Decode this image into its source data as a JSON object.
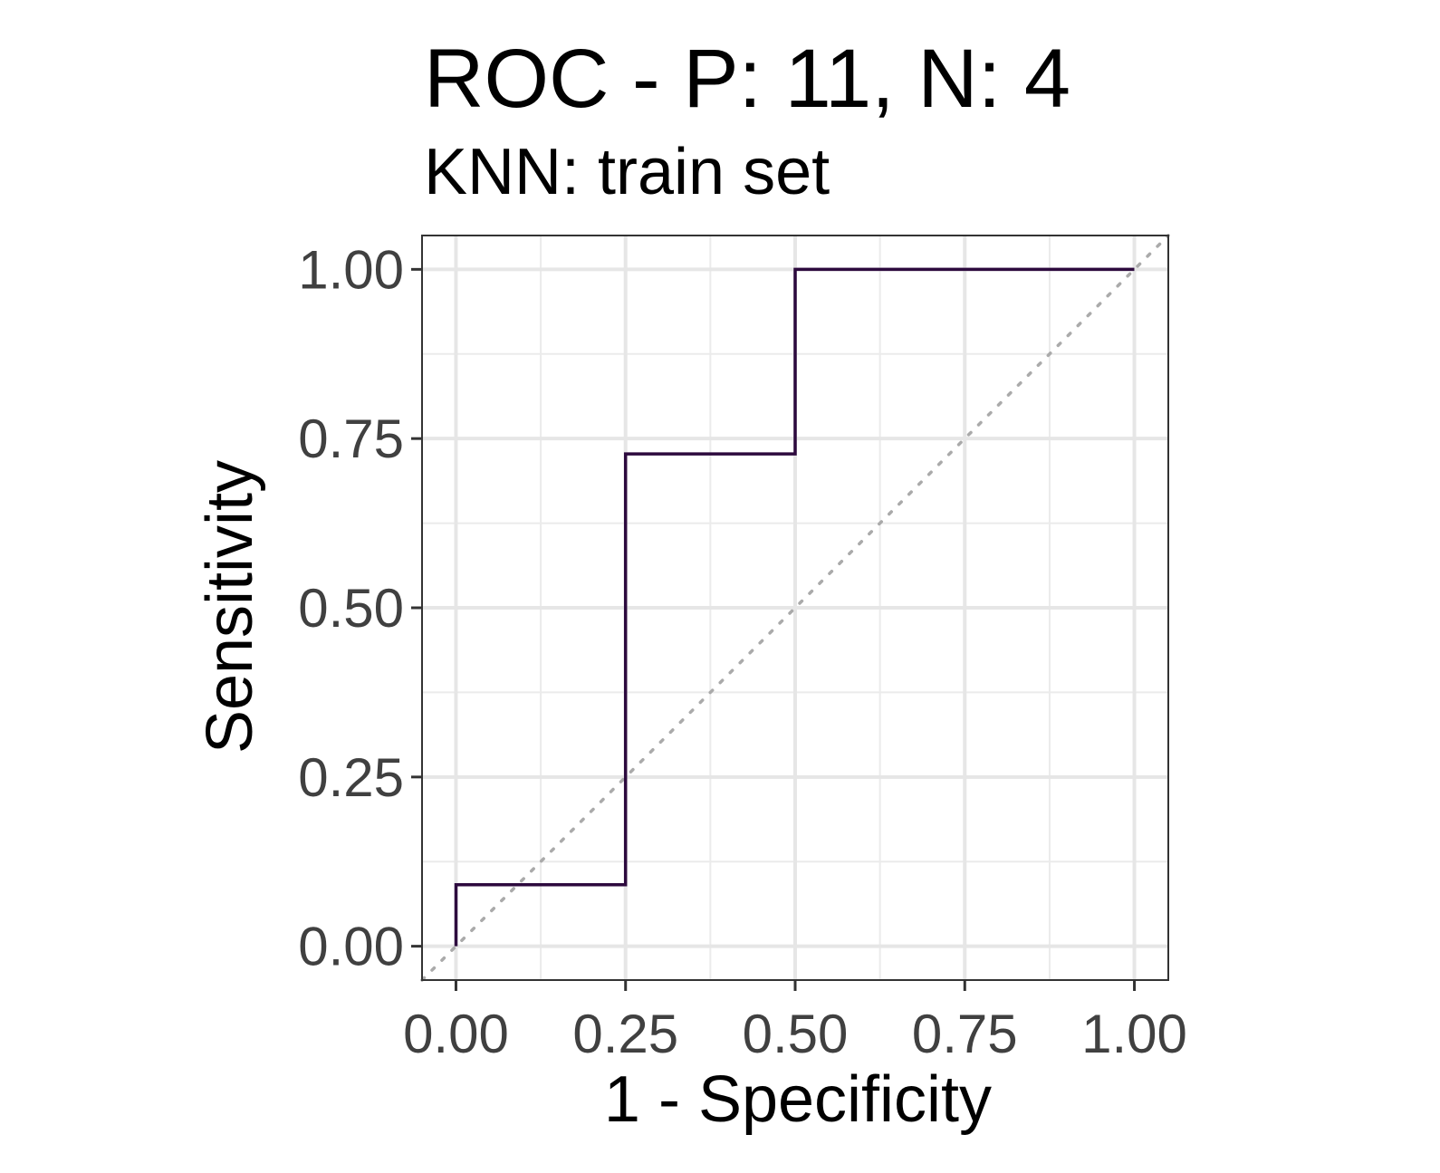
{
  "chart_data": {
    "type": "line",
    "title": "ROC - P: 11, N: 4",
    "subtitle": "KNN: train set",
    "xlabel": "1 - Specificity",
    "ylabel": "Sensitivity",
    "xlim": [
      -0.05,
      1.05
    ],
    "ylim": [
      -0.05,
      1.05
    ],
    "x_ticks": [
      0,
      0.25,
      0.5,
      0.75,
      1
    ],
    "y_ticks": [
      0,
      0.25,
      0.5,
      0.75,
      1
    ],
    "x_tick_labels": [
      "0.00",
      "0.25",
      "0.50",
      "0.75",
      "1.00"
    ],
    "y_tick_labels": [
      "0.00",
      "0.25",
      "0.50",
      "0.75",
      "1.00"
    ],
    "grid": true,
    "series": [
      {
        "x": [
          0,
          0,
          0.25,
          0.25,
          0.5,
          0.5,
          1.0
        ],
        "y": [
          0,
          0.0909,
          0.0909,
          0.7273,
          0.7273,
          1.0,
          1.0
        ],
        "color": "#2d0a3e",
        "step": true
      }
    ],
    "reference_line": {
      "x": [
        -0.05,
        1.05
      ],
      "y": [
        -0.05,
        1.05
      ],
      "style": "dotted",
      "color": "#aaaaaa"
    }
  }
}
